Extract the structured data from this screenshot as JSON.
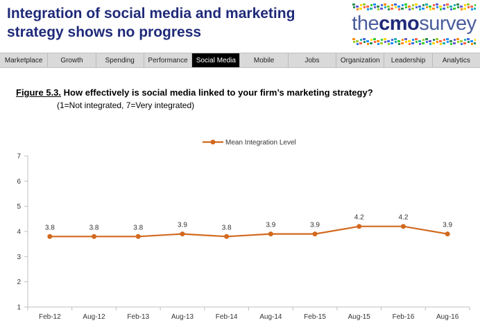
{
  "header": {
    "title_line1": "Integration of social media and marketing",
    "title_line2": "strategy shows no progress"
  },
  "logo": {
    "text_light_1": "the",
    "text_bold": "cmo",
    "text_light_2": "survey"
  },
  "nav": {
    "items": [
      {
        "label": "Marketplace"
      },
      {
        "label": "Growth"
      },
      {
        "label": "Spending"
      },
      {
        "label": "Performance"
      },
      {
        "label": "Social Media",
        "active": true
      },
      {
        "label": "Mobile"
      },
      {
        "label": "Jobs"
      },
      {
        "label": "Organization"
      },
      {
        "label": "Leadership"
      },
      {
        "label": "Analytics"
      }
    ]
  },
  "figure": {
    "label": "Figure 5.3.",
    "question": "How effectively is social media linked to your firm’s marketing strategy?",
    "scale_note": "(1=Not integrated,  7=Very integrated)"
  },
  "colors": {
    "series": "#d2691e",
    "title": "#1f2a7a",
    "nav_bg": "#d9d9d9",
    "nav_active": "#000000"
  },
  "chart_data": {
    "type": "line",
    "categories": [
      "Feb-12",
      "Aug-12",
      "Feb-13",
      "Aug-13",
      "Feb-14",
      "Aug-14",
      "Feb-15",
      "Aug-15",
      "Feb-16",
      "Aug-16"
    ],
    "series": [
      {
        "name": "Mean Integration Level",
        "values": [
          3.8,
          3.8,
          3.8,
          3.9,
          3.8,
          3.9,
          3.9,
          4.2,
          4.2,
          3.9
        ]
      }
    ],
    "data_labels": [
      "3.8",
      "3.8",
      "3.8",
      "3.9",
      "3.8",
      "3.9",
      "3.9",
      "4.2",
      "4.2",
      "3.9"
    ],
    "y_ticks": [
      "1",
      "2",
      "3",
      "4",
      "5",
      "6",
      "7"
    ],
    "ylim": [
      1,
      7
    ],
    "legend_position": "top-center",
    "grid": false
  }
}
